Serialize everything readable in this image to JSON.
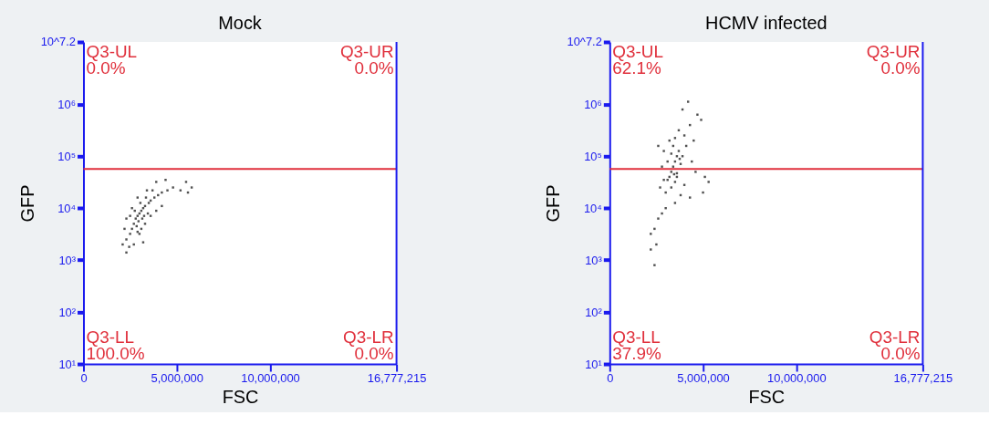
{
  "chart_data": [
    {
      "type": "scatter",
      "title": "Mock",
      "xlabel": "FSC",
      "ylabel": "GFP",
      "log": "y",
      "marker": "square",
      "xlim": [
        0,
        16777215
      ],
      "xticks": [
        0,
        {
          "value": 5000000,
          "label": "5,000,000"
        },
        {
          "value": 10000000,
          "label": "10,000,000"
        },
        {
          "value": 16777215,
          "label": "16,777,215"
        }
      ],
      "ylim": [
        10,
        15848932
      ],
      "yticks": [
        {
          "value": 10,
          "label": "10¹"
        },
        {
          "value": 100,
          "label": "10²"
        },
        {
          "value": 1000,
          "label": "10³"
        },
        {
          "value": 10000,
          "label": "10⁴"
        },
        {
          "value": 100000,
          "label": "10⁵"
        },
        {
          "value": 1000000,
          "label": "10⁶"
        },
        {
          "value": 15848932,
          "label": "10^7.2"
        }
      ],
      "ref_lines": [
        {
          "axis": "y",
          "value": 57000,
          "color": "#e0303c"
        }
      ],
      "annotations": [
        "Q3-UL",
        "0.0%",
        "Q3-UR",
        "0.0%",
        "Q3-LL",
        "100.0%",
        "Q3-LR",
        "0.0%"
      ],
      "series": [
        {
          "color": "#333333",
          "x": [
            2300000,
            2500000,
            2600000,
            2700000,
            2800000,
            2900000,
            3000000,
            3100000,
            3200000,
            3300000,
            3500000,
            3600000,
            3800000,
            4000000,
            4200000,
            4500000,
            4800000,
            5200000,
            5600000,
            5800000,
            5500000,
            4400000,
            3900000,
            3400000,
            2900000,
            2600000,
            2300000,
            2200000,
            2100000,
            2300000,
            2700000,
            3000000,
            3300000,
            3600000,
            3900000,
            4200000,
            3100000,
            2900000,
            2750000,
            3050000,
            3350000,
            3700000,
            2500000,
            2450000,
            3200000,
            2950000,
            3150000,
            3450000,
            2850000,
            3250000
          ],
          "values": [
            2500,
            3200,
            4000,
            5000,
            6300,
            7100,
            7900,
            8900,
            10000,
            11000,
            12600,
            14000,
            16000,
            17800,
            20000,
            22000,
            25000,
            22000,
            20000,
            25000,
            32000,
            35000,
            32000,
            22000,
            16000,
            10000,
            6300,
            4000,
            2000,
            1400,
            2000,
            3200,
            5000,
            7100,
            8900,
            11000,
            4000,
            3500,
            8900,
            12600,
            16000,
            22000,
            7100,
            1800,
            2200,
            5600,
            6300,
            7900,
            4500,
            7100
          ]
        }
      ]
    },
    {
      "type": "scatter",
      "title": "HCMV infected",
      "xlabel": "FSC",
      "ylabel": "GFP",
      "log": "y",
      "marker": "square",
      "xlim": [
        0,
        16777215
      ],
      "xticks": [
        0,
        {
          "value": 5000000,
          "label": "5,000,000"
        },
        {
          "value": 10000000,
          "label": "10,000,000"
        },
        {
          "value": 16777215,
          "label": "16,777,215"
        }
      ],
      "ylim": [
        10,
        15848932
      ],
      "yticks": [
        {
          "value": 10,
          "label": "10¹"
        },
        {
          "value": 100,
          "label": "10²"
        },
        {
          "value": 1000,
          "label": "10³"
        },
        {
          "value": 10000,
          "label": "10⁴"
        },
        {
          "value": 100000,
          "label": "10⁵"
        },
        {
          "value": 1000000,
          "label": "10⁶"
        },
        {
          "value": 15848932,
          "label": "10^7.2"
        }
      ],
      "ref_lines": [
        {
          "axis": "y",
          "value": 57000,
          "color": "#e0303c"
        }
      ],
      "annotations": [
        "Q3-UL",
        "62.1%",
        "Q3-UR",
        "0.0%",
        "Q3-LL",
        "37.9%",
        "Q3-LR",
        "0.0%"
      ],
      "series": [
        {
          "color": "#333333",
          "x": [
            3400000,
            3500000,
            3300000,
            3600000,
            3200000,
            3700000,
            3400000,
            3800000,
            3100000,
            3500000,
            3300000,
            3000000,
            3600000,
            3900000,
            4100000,
            4000000,
            3700000,
            4300000,
            4700000,
            4900000,
            3900000,
            4200000,
            2600000,
            2900000,
            2800000,
            4400000,
            4600000,
            5100000,
            5300000,
            5000000,
            4300000,
            3000000,
            2800000,
            2600000,
            2400000,
            2200000,
            2500000,
            2200000,
            2400000,
            3500000,
            3800000,
            3200000,
            3500000,
            3300000,
            3600000,
            3100000,
            4000000,
            3450000,
            3750000,
            2700000,
            2900000,
            4500000
          ],
          "values": [
            63000,
            79000,
            50000,
            100000,
            40000,
            126000,
            158000,
            71000,
            79000,
            32000,
            25000,
            20000,
            40000,
            100000,
            158000,
            251000,
            316000,
            398000,
            631000,
            501000,
            794000,
            1120000,
            158000,
            126000,
            63000,
            79000,
            50000,
            40000,
            32000,
            20000,
            16000,
            10000,
            7900,
            6300,
            4000,
            3200,
            2000,
            1600,
            800,
            12600,
            17800,
            200000,
            224000,
            112000,
            47000,
            35000,
            28000,
            45000,
            89000,
            25000,
            35000,
            200000
          ]
        }
      ]
    }
  ]
}
